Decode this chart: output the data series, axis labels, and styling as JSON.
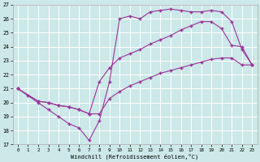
{
  "xlabel": "Windchill (Refroidissement éolien,°C)",
  "bg_color": "#cce8e8",
  "grid_color": "#ffffff",
  "line_color": "#993399",
  "xlim": [
    -0.5,
    23.5
  ],
  "ylim": [
    17,
    27
  ],
  "yticks": [
    17,
    18,
    19,
    20,
    21,
    22,
    23,
    24,
    25,
    26,
    27
  ],
  "xticks": [
    0,
    1,
    2,
    3,
    4,
    5,
    6,
    7,
    8,
    9,
    10,
    11,
    12,
    13,
    14,
    15,
    16,
    17,
    18,
    19,
    20,
    21,
    22,
    23
  ],
  "line1_x": [
    0,
    1,
    2,
    3,
    4,
    5,
    6,
    7,
    8,
    9,
    10,
    11,
    12,
    13,
    14,
    15,
    16,
    17,
    18,
    19,
    20,
    21,
    22,
    23
  ],
  "line1_y": [
    21.0,
    20.5,
    20.0,
    19.5,
    19.0,
    18.5,
    18.2,
    17.3,
    18.7,
    21.5,
    26.0,
    26.2,
    26.0,
    26.5,
    26.6,
    26.7,
    26.6,
    26.5,
    26.5,
    26.6,
    26.5,
    25.8,
    23.8,
    22.7
  ],
  "line2_x": [
    0,
    2,
    3,
    4,
    5,
    6,
    7,
    8,
    9,
    10,
    11,
    12,
    13,
    14,
    15,
    16,
    17,
    18,
    19,
    20,
    21,
    22,
    23
  ],
  "line2_y": [
    21.0,
    20.1,
    20.0,
    19.8,
    19.7,
    19.5,
    19.2,
    21.5,
    22.5,
    23.2,
    23.5,
    23.8,
    24.2,
    24.5,
    24.8,
    25.2,
    25.5,
    25.8,
    25.8,
    25.3,
    24.1,
    24.0,
    22.7
  ],
  "line3_x": [
    0,
    2,
    3,
    4,
    5,
    6,
    7,
    8,
    9,
    10,
    11,
    12,
    13,
    14,
    15,
    16,
    17,
    18,
    19,
    20,
    21,
    22,
    23
  ],
  "line3_y": [
    21.0,
    20.1,
    20.0,
    19.8,
    19.7,
    19.5,
    19.2,
    19.2,
    20.3,
    20.8,
    21.2,
    21.5,
    21.8,
    22.1,
    22.3,
    22.5,
    22.7,
    22.9,
    23.1,
    23.2,
    23.2,
    22.7,
    22.7
  ]
}
